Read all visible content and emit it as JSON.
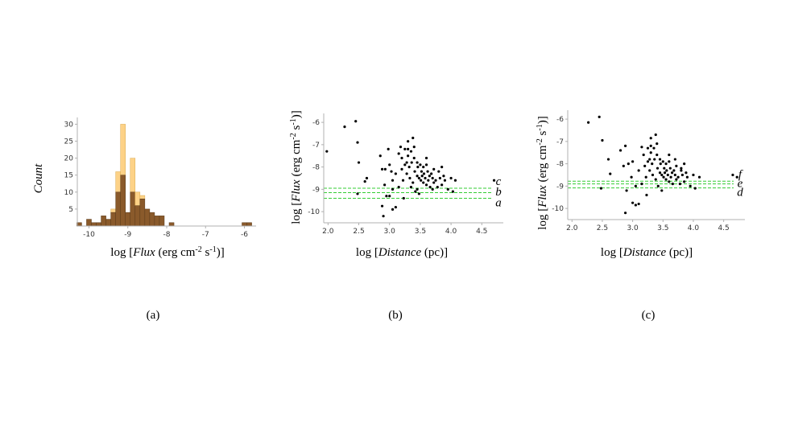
{
  "chart_data": [
    {
      "type": "histogram",
      "panel_label": "(a)",
      "ylabel": "Count",
      "xlabel": {
        "pre": "log [",
        "italic": "Flux",
        "mid": " (erg cm",
        "sup1": "-2",
        "mid2": " s",
        "sup2": "-1",
        "post": ")]"
      },
      "xlim": [
        -10.3,
        -5.7
      ],
      "ylim": [
        0,
        32
      ],
      "xticks": [
        -10,
        -9,
        -8,
        -7,
        -6
      ],
      "xtick_labels": [
        "-10",
        "-9",
        "-8",
        "-7",
        "-6"
      ],
      "yticks": [
        5,
        10,
        15,
        20,
        25,
        30
      ],
      "ytick_labels": [
        "5",
        "10",
        "15",
        "20",
        "25",
        "30"
      ],
      "bin_width": 0.125,
      "colors": {
        "light": "#fdd287",
        "dark": "#8a5a2b",
        "edge": "#5a3a1a"
      },
      "series": [
        {
          "x": -10.25,
          "dark": 1,
          "light": 1
        },
        {
          "x": -10.125,
          "dark": 0,
          "light": 0
        },
        {
          "x": -10.0,
          "dark": 2,
          "light": 2
        },
        {
          "x": -9.875,
          "dark": 1,
          "light": 1
        },
        {
          "x": -9.75,
          "dark": 1,
          "light": 1
        },
        {
          "x": -9.625,
          "dark": 3,
          "light": 3
        },
        {
          "x": -9.5,
          "dark": 2,
          "light": 2
        },
        {
          "x": -9.375,
          "dark": 4,
          "light": 5
        },
        {
          "x": -9.25,
          "dark": 10,
          "light": 16
        },
        {
          "x": -9.125,
          "dark": 15,
          "light": 30
        },
        {
          "x": -9.0,
          "dark": 4,
          "light": 4
        },
        {
          "x": -8.875,
          "dark": 10,
          "light": 20
        },
        {
          "x": -8.75,
          "dark": 6,
          "light": 10
        },
        {
          "x": -8.625,
          "dark": 8,
          "light": 9
        },
        {
          "x": -8.5,
          "dark": 5,
          "light": 5
        },
        {
          "x": -8.375,
          "dark": 4,
          "light": 4
        },
        {
          "x": -8.25,
          "dark": 3,
          "light": 3
        },
        {
          "x": -8.125,
          "dark": 3,
          "light": 3
        },
        {
          "x": -8.0,
          "dark": 0,
          "light": 0
        },
        {
          "x": -7.875,
          "dark": 1,
          "light": 1
        },
        {
          "x": -7.75,
          "dark": 0,
          "light": 0
        },
        {
          "x": -7.625,
          "dark": 0,
          "light": 0
        },
        {
          "x": -7.5,
          "dark": 0,
          "light": 0
        },
        {
          "x": -7.375,
          "dark": 0,
          "light": 0
        },
        {
          "x": -7.25,
          "dark": 0,
          "light": 0
        },
        {
          "x": -7.125,
          "dark": 0,
          "light": 0
        },
        {
          "x": -7.0,
          "dark": 0,
          "light": 0
        },
        {
          "x": -6.875,
          "dark": 0,
          "light": 0
        },
        {
          "x": -6.0,
          "dark": 1,
          "light": 1
        },
        {
          "x": -5.875,
          "dark": 1,
          "light": 1
        }
      ]
    },
    {
      "type": "scatter",
      "panel_label": "(b)",
      "xlabel": {
        "pre": "log [",
        "italic": "Distance",
        "post": " (pc)]"
      },
      "ylabel": {
        "pre": "log [",
        "italic": "Flux",
        "mid": " (erg cm",
        "sup1": "-2",
        "mid2": " s",
        "sup2": "-1",
        "post": ")]"
      },
      "xlim": [
        1.93,
        4.85
      ],
      "ylim": [
        -10.5,
        -5.6
      ],
      "xticks": [
        2.0,
        2.5,
        3.0,
        3.5,
        4.0,
        4.5
      ],
      "xtick_labels": [
        "2.0",
        "2.5",
        "3.0",
        "3.5",
        "4.0",
        "4.5"
      ],
      "yticks": [
        -10,
        -9,
        -8,
        -7,
        -6
      ],
      "ytick_labels": [
        "-10",
        "-9",
        "-8",
        "-7",
        "-6"
      ],
      "threshold_color": "#33cc33",
      "thresholds": [
        {
          "label": "c",
          "y": -8.95
        },
        {
          "label": "b",
          "y": -9.15
        },
        {
          "label": "a",
          "y": -9.4
        }
      ],
      "points": [
        [
          1.98,
          -7.3
        ],
        [
          2.27,
          -6.2
        ],
        [
          2.45,
          -5.95
        ],
        [
          2.48,
          -6.9
        ],
        [
          2.5,
          -7.8
        ],
        [
          2.48,
          -9.2
        ],
        [
          2.63,
          -8.5
        ],
        [
          2.6,
          -8.65
        ],
        [
          2.85,
          -7.5
        ],
        [
          2.88,
          -8.1
        ],
        [
          2.93,
          -8.1
        ],
        [
          2.98,
          -7.2
        ],
        [
          3.0,
          -7.9
        ],
        [
          3.03,
          -8.2
        ],
        [
          3.05,
          -8.6
        ],
        [
          2.92,
          -8.8
        ],
        [
          2.95,
          -9.3
        ],
        [
          3.0,
          -9.3
        ],
        [
          2.88,
          -9.75
        ],
        [
          2.9,
          -10.2
        ],
        [
          3.05,
          -9.9
        ],
        [
          3.1,
          -9.8
        ],
        [
          3.1,
          -8.3
        ],
        [
          3.15,
          -7.4
        ],
        [
          3.18,
          -7.1
        ],
        [
          3.2,
          -7.6
        ],
        [
          3.2,
          -8.1
        ],
        [
          3.22,
          -8.6
        ],
        [
          3.23,
          -9.4
        ],
        [
          3.25,
          -7.2
        ],
        [
          3.25,
          -7.9
        ],
        [
          3.28,
          -7.8
        ],
        [
          3.28,
          -8.3
        ],
        [
          3.3,
          -6.85
        ],
        [
          3.3,
          -7.5
        ],
        [
          3.32,
          -8.0
        ],
        [
          3.33,
          -8.5
        ],
        [
          3.35,
          -7.3
        ],
        [
          3.36,
          -7.8
        ],
        [
          3.38,
          -6.7
        ],
        [
          3.38,
          -8.7
        ],
        [
          3.4,
          -7.6
        ],
        [
          3.41,
          -8.2
        ],
        [
          3.42,
          -9.1
        ],
        [
          3.45,
          -7.8
        ],
        [
          3.45,
          -8.4
        ],
        [
          3.46,
          -8.0
        ],
        [
          3.48,
          -8.5
        ],
        [
          3.48,
          -9.2
        ],
        [
          3.5,
          -7.9
        ],
        [
          3.51,
          -8.6
        ],
        [
          3.52,
          -8.2
        ],
        [
          3.53,
          -8.4
        ],
        [
          3.55,
          -8.0
        ],
        [
          3.55,
          -8.7
        ],
        [
          3.56,
          -8.3
        ],
        [
          3.58,
          -8.5
        ],
        [
          3.6,
          -7.9
        ],
        [
          3.6,
          -8.8
        ],
        [
          3.62,
          -8.2
        ],
        [
          3.63,
          -8.6
        ],
        [
          3.65,
          -8.4
        ],
        [
          3.66,
          -8.9
        ],
        [
          3.68,
          -8.3
        ],
        [
          3.7,
          -8.5
        ],
        [
          3.72,
          -8.1
        ],
        [
          3.72,
          -8.7
        ],
        [
          3.75,
          -8.6
        ],
        [
          3.78,
          -8.9
        ],
        [
          3.8,
          -8.2
        ],
        [
          3.82,
          -8.5
        ],
        [
          3.85,
          -8.0
        ],
        [
          3.85,
          -8.8
        ],
        [
          3.88,
          -8.4
        ],
        [
          3.9,
          -8.6
        ],
        [
          3.95,
          -9.0
        ],
        [
          4.0,
          -8.5
        ],
        [
          4.03,
          -9.1
        ],
        [
          4.07,
          -8.6
        ],
        [
          4.7,
          -8.6
        ],
        [
          3.35,
          -8.9
        ],
        [
          3.45,
          -9.0
        ],
        [
          3.7,
          -9.0
        ],
        [
          3.15,
          -8.9
        ],
        [
          3.05,
          -9.0
        ],
        [
          3.6,
          -7.6
        ],
        [
          3.3,
          -7.2
        ],
        [
          3.4,
          -7.1
        ]
      ]
    },
    {
      "type": "scatter",
      "panel_label": "(c)",
      "xlabel": {
        "pre": "log [",
        "italic": "Distance",
        "post": " (pc)]"
      },
      "ylabel": {
        "pre": "log [",
        "italic": "Flux",
        "mid": " (erg cm",
        "sup1": "-2",
        "mid2": " s",
        "sup2": "-1",
        "post": ")]"
      },
      "xlim": [
        1.93,
        4.85
      ],
      "ylim": [
        -10.5,
        -5.6
      ],
      "xticks": [
        2.0,
        2.5,
        3.0,
        3.5,
        4.0,
        4.5
      ],
      "xtick_labels": [
        "2.0",
        "2.5",
        "3.0",
        "3.5",
        "4.0",
        "4.5"
      ],
      "yticks": [
        -10,
        -9,
        -8,
        -7,
        -6
      ],
      "ytick_labels": [
        "-10",
        "-9",
        "-8",
        "-7",
        "-6"
      ],
      "threshold_color": "#33cc33",
      "thresholds": [
        {
          "label": "f",
          "y": -8.78
        },
        {
          "label": "e",
          "y": -8.9
        },
        {
          "label": "d",
          "y": -9.08
        }
      ],
      "points": [
        [
          2.27,
          -6.15
        ],
        [
          2.45,
          -5.9
        ],
        [
          2.5,
          -6.95
        ],
        [
          2.48,
          -9.1
        ],
        [
          2.63,
          -8.45
        ],
        [
          2.6,
          -7.8
        ],
        [
          2.8,
          -7.4
        ],
        [
          2.85,
          -8.1
        ],
        [
          2.88,
          -7.2
        ],
        [
          2.93,
          -8.0
        ],
        [
          2.98,
          -8.6
        ],
        [
          3.0,
          -7.9
        ],
        [
          2.9,
          -9.2
        ],
        [
          2.88,
          -10.2
        ],
        [
          3.0,
          -9.75
        ],
        [
          3.05,
          -9.85
        ],
        [
          3.1,
          -9.8
        ],
        [
          3.1,
          -8.3
        ],
        [
          3.15,
          -7.25
        ],
        [
          3.18,
          -7.6
        ],
        [
          3.2,
          -8.1
        ],
        [
          3.22,
          -8.6
        ],
        [
          3.23,
          -9.4
        ],
        [
          3.25,
          -7.3
        ],
        [
          3.25,
          -7.9
        ],
        [
          3.28,
          -7.8
        ],
        [
          3.28,
          -8.3
        ],
        [
          3.3,
          -6.85
        ],
        [
          3.3,
          -7.5
        ],
        [
          3.32,
          -8.0
        ],
        [
          3.33,
          -8.5
        ],
        [
          3.35,
          -7.3
        ],
        [
          3.36,
          -7.8
        ],
        [
          3.38,
          -6.7
        ],
        [
          3.38,
          -8.7
        ],
        [
          3.4,
          -7.6
        ],
        [
          3.41,
          -8.2
        ],
        [
          3.42,
          -9.0
        ],
        [
          3.45,
          -7.8
        ],
        [
          3.45,
          -8.4
        ],
        [
          3.46,
          -8.0
        ],
        [
          3.48,
          -8.5
        ],
        [
          3.48,
          -9.2
        ],
        [
          3.5,
          -7.9
        ],
        [
          3.51,
          -8.6
        ],
        [
          3.52,
          -8.2
        ],
        [
          3.53,
          -8.4
        ],
        [
          3.55,
          -8.0
        ],
        [
          3.55,
          -8.7
        ],
        [
          3.56,
          -8.3
        ],
        [
          3.58,
          -8.5
        ],
        [
          3.6,
          -7.9
        ],
        [
          3.6,
          -8.8
        ],
        [
          3.62,
          -8.2
        ],
        [
          3.63,
          -8.6
        ],
        [
          3.65,
          -8.4
        ],
        [
          3.66,
          -8.9
        ],
        [
          3.68,
          -8.3
        ],
        [
          3.7,
          -8.5
        ],
        [
          3.72,
          -8.1
        ],
        [
          3.72,
          -8.7
        ],
        [
          3.75,
          -8.6
        ],
        [
          3.78,
          -8.9
        ],
        [
          3.8,
          -8.2
        ],
        [
          3.82,
          -8.5
        ],
        [
          3.85,
          -8.0
        ],
        [
          3.85,
          -8.8
        ],
        [
          3.88,
          -8.4
        ],
        [
          3.9,
          -8.6
        ],
        [
          3.95,
          -9.0
        ],
        [
          4.0,
          -8.5
        ],
        [
          4.03,
          -9.1
        ],
        [
          4.1,
          -8.6
        ],
        [
          4.65,
          -8.5
        ],
        [
          4.72,
          -8.6
        ],
        [
          3.15,
          -8.9
        ],
        [
          3.05,
          -9.0
        ],
        [
          3.6,
          -7.6
        ],
        [
          3.3,
          -7.2
        ],
        [
          3.4,
          -7.1
        ],
        [
          3.7,
          -7.8
        ],
        [
          3.8,
          -8.3
        ]
      ]
    }
  ]
}
